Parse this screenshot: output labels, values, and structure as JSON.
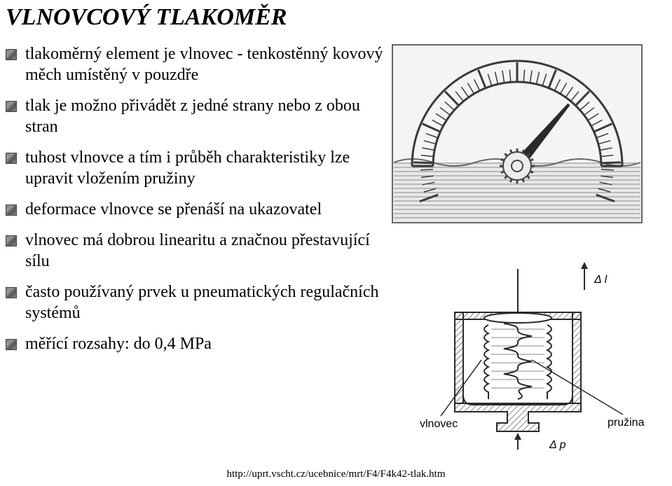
{
  "title": "VLNOVCOVÝ TLAKOMĚR",
  "bullets": {
    "b0": "tlakoměrný element je vlnovec - tenkostěnný kovový měch umístěný v pouzdře",
    "b1": "tlak je možno přivádět z jedné strany nebo z obou stran",
    "b2": "tuhost vlnovce a tím i průběh charakteristiky lze upravit vložením pružiny",
    "b3": "deformace vlnovce se přenáší na ukazovatel",
    "b4": "vlnovec má dobrou linearitu a značnou přestavující sílu",
    "b5": "často používaný prvek u pneumatických regulačních systémů",
    "b6": "měřící rozsahy: do 0,4 MPa"
  },
  "diagram_labels": {
    "dl": "Δ l",
    "dp": "Δ p",
    "vlnovec": "vlnovec",
    "pruzina": "pružina"
  },
  "footer": "http://uprt.vscht.cz/ucebnice/mrt/F4/F4k42-tlak.htm",
  "gauge": {
    "stroke": "#3a3a3a",
    "needle_color": "#2a2a2a",
    "bg": "#f2f2f2",
    "tick_major": 11,
    "tick_minor_per_gap": 4,
    "arc_start_deg": -200,
    "arc_end_deg": 20
  },
  "bellows": {
    "stroke": "#2a2a2a",
    "stroke_width": 2
  }
}
